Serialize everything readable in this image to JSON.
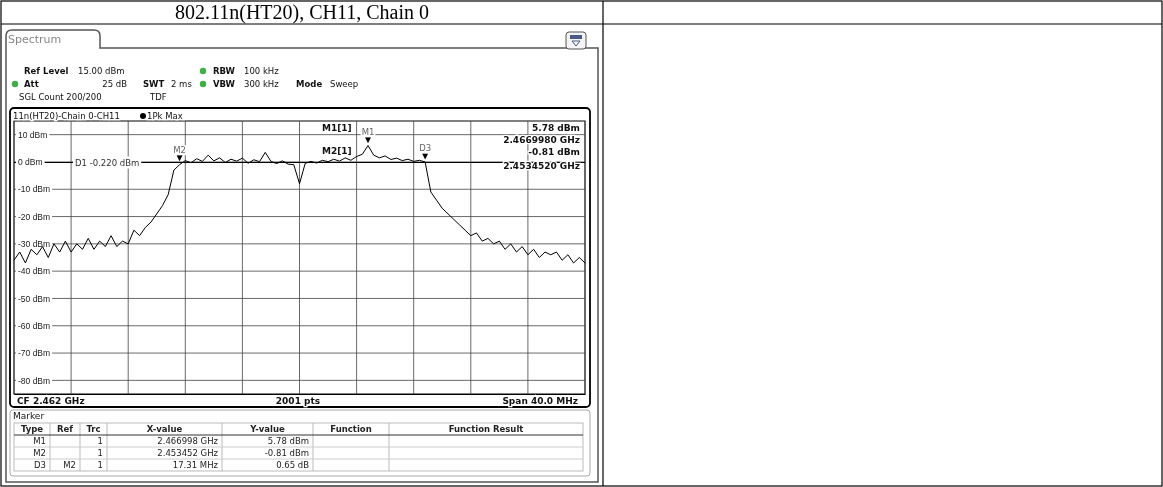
{
  "chart_data": {
    "type": "line",
    "title": "802.11n(HT20), CH11, Chain 0",
    "categories": [
      null,
      null,
      null,
      null,
      null,
      null,
      null,
      null,
      null,
      null,
      null,
      null,
      null,
      null,
      null,
      null,
      null,
      null,
      null,
      null,
      null,
      null,
      null,
      null,
      null,
      null,
      null,
      null,
      null,
      null,
      null,
      null,
      null,
      null,
      null,
      null,
      null,
      null,
      null,
      null,
      null,
      null,
      null,
      null,
      null,
      null,
      null,
      null,
      null,
      null,
      null,
      null,
      null,
      null,
      null,
      null,
      null,
      null,
      null,
      null,
      null,
      null,
      null,
      null,
      null,
      null,
      null,
      null,
      null,
      null,
      null,
      null,
      null,
      null,
      null,
      null,
      null,
      null,
      null,
      null,
      null,
      null,
      null,
      null,
      null,
      null,
      null,
      null,
      null,
      null,
      null,
      null,
      null,
      null,
      null,
      null,
      null,
      null,
      null,
      null,
      null
    ],
    "ylim": [
      -85,
      15
    ],
    "yticks": [
      {
        "value": 10,
        "label": "10 dBm"
      },
      {
        "value": 0,
        "label": "0 dBm"
      },
      {
        "value": -10,
        "label": "-10 dBm"
      },
      {
        "value": -20,
        "label": "-20 dBm"
      },
      {
        "value": -30,
        "label": "-30 dBm"
      },
      {
        "value": -40,
        "label": "-40 dBm"
      },
      {
        "value": -50,
        "label": "-50 dBm"
      },
      {
        "value": -60,
        "label": "-60 dBm"
      },
      {
        "value": -70,
        "label": "-70 dBm"
      },
      {
        "value": -80,
        "label": "-80 dBm"
      }
    ],
    "grid": true,
    "tick_labels": "y",
    "series": [
      {
        "color": "#000000",
        "values": [
          -36,
          -33,
          -37,
          -32,
          -34,
          -31,
          -35,
          -30,
          -33,
          -29,
          -33,
          -30,
          -32,
          -28,
          -32,
          -29,
          -31,
          -27,
          -31,
          -29,
          -30,
          -25,
          -27,
          -24,
          -22,
          -19,
          -16,
          -12,
          -3,
          -1,
          0.5,
          -0.3,
          1.2,
          0.2,
          2.5,
          0.4,
          1.5,
          -0.2,
          1,
          0.3,
          1.4,
          -0.5,
          0.8,
          0.1,
          3.5,
          0.2,
          -0.6,
          0.4,
          -0.8,
          -1,
          -8,
          -0.5,
          0.2,
          -0.4,
          0.6,
          0.1,
          1,
          0.3,
          1.5,
          0.6,
          2,
          2.8,
          6,
          2.5,
          1.5,
          2.2,
          0.9,
          1.4,
          0.5,
          1,
          0.2,
          0.6,
          0,
          -11,
          -14,
          -17,
          -19,
          -21,
          -23,
          -25,
          -27,
          -26,
          -29,
          -28,
          -30,
          -29,
          -32,
          -30,
          -33,
          -31,
          -34,
          -32,
          -35,
          -33,
          -34,
          -33,
          -36,
          -34,
          -37,
          -35,
          -37
        ]
      }
    ],
    "ref_lines": [
      {
        "axis": "y",
        "value": -0.22,
        "label": "D1 -0.220 dBm"
      }
    ],
    "annotations": [
      "Spectrum",
      "Ref Level",
      "15.00 dBm",
      "Att",
      "25 dB",
      "SWT",
      "2 ms",
      "RBW",
      "100 kHz",
      "VBW",
      "300 kHz",
      "Mode",
      "Sweep",
      "SGL Count 200/200",
      "TDF",
      "11n(HT20)-Chain 0-CH11",
      "1Pk Max",
      "M1[1]",
      "5.78 dBm",
      "2.4669980 GHz",
      "M2[1]",
      "-0.81 dBm",
      "2.4534520 GHz",
      "CF 2.462 GHz",
      "2001 pts",
      "Span 40.0 MHz",
      "Marker",
      "Type",
      "Ref",
      "Trc",
      "X-value",
      "Y-value",
      "Function",
      "Function Result",
      "M1",
      "1",
      "2.466998 GHz",
      "5.78 dBm",
      "M2",
      "1",
      "2.453452 GHz",
      "-0.81 dBm",
      "D3",
      "M2",
      "1",
      "17.31 MHz",
      "0.65 dB",
      {
        "text": "M1",
        "y": 5.78
      },
      {
        "text": "M2",
        "y": -0.81
      },
      {
        "text": "D3",
        "y": -0.16
      }
    ]
  }
}
